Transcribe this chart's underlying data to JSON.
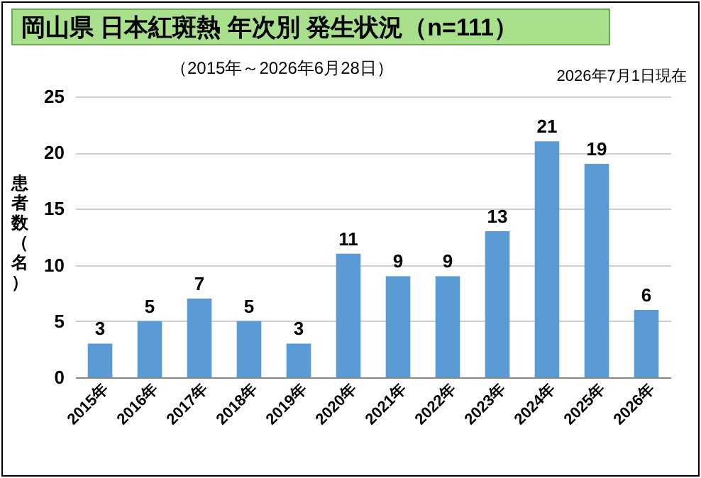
{
  "chart_data": {
    "type": "bar",
    "title": "岡山県 日本紅斑熱 年次別 発生状況（n=111）",
    "subtitle": "（2015年～2026年6月28日）",
    "annotations": [
      "2026年7月1日現在"
    ],
    "ylabel": "患者数（名）",
    "categories": [
      "2015年",
      "2016年",
      "2017年",
      "2018年",
      "2019年",
      "2020年",
      "2021年",
      "2022年",
      "2023年",
      "2024年",
      "2025年",
      "2026年"
    ],
    "values": [
      3,
      5,
      7,
      5,
      3,
      11,
      9,
      9,
      13,
      21,
      19,
      6
    ],
    "color": "#5b9bd5",
    "ylim": [
      0,
      25
    ],
    "yticks": [
      0,
      5,
      10,
      15,
      20,
      25
    ],
    "grid": "y",
    "data_labels": true
  }
}
